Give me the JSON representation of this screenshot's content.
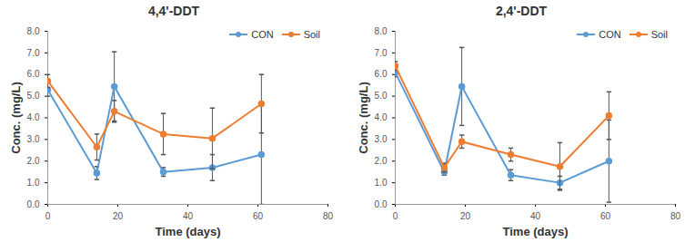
{
  "chart_data": [
    {
      "type": "line",
      "title": "4,4'-DDT",
      "x_label": "Time (days)",
      "y_label": "Conc. (mg/L)",
      "x": [
        0,
        14,
        19,
        33,
        47,
        61
      ],
      "series": [
        {
          "name": "CON",
          "color": "#5b9bd5",
          "marker": "circle",
          "values": [
            5.3,
            1.45,
            5.45,
            1.5,
            1.7,
            2.3
          ],
          "error": [
            0.3,
            0.3,
            1.6,
            0.2,
            0.6,
            2.3
          ]
        },
        {
          "name": "Soil",
          "color": "#ed7d31",
          "marker": "circle",
          "values": [
            5.7,
            2.65,
            4.3,
            3.25,
            3.05,
            4.65
          ],
          "error": [
            0.3,
            0.6,
            0.5,
            0.95,
            1.4,
            1.35
          ]
        }
      ],
      "xlim": [
        0,
        80
      ],
      "xticks": [
        0,
        20,
        40,
        60,
        80
      ],
      "ylim": [
        0,
        8
      ],
      "yticks": [
        {
          "value": 0,
          "label": "0.0"
        },
        {
          "value": 1,
          "label": "1.0"
        },
        {
          "value": 2,
          "label": "2.0"
        },
        {
          "value": 3,
          "label": "3.0"
        },
        {
          "value": 4,
          "label": "4.0"
        },
        {
          "value": 5,
          "label": "5.0"
        },
        {
          "value": 6,
          "label": "6.0"
        },
        {
          "value": 7,
          "label": "7.0"
        },
        {
          "value": 8,
          "label": "8.0"
        }
      ],
      "legend": "upper right",
      "grid": false
    },
    {
      "type": "line",
      "title": "2,4'-DDT",
      "x_label": "Time (days)",
      "y_label": "Conc. (mg/L)",
      "x": [
        0,
        14,
        19,
        33,
        47,
        61
      ],
      "series": [
        {
          "name": "CON",
          "color": "#5b9bd5",
          "marker": "circle",
          "values": [
            6.1,
            1.5,
            5.45,
            1.35,
            1.0,
            2.0
          ],
          "error": [
            0.2,
            0.15,
            1.8,
            0.25,
            0.3,
            1.9
          ]
        },
        {
          "name": "Soil",
          "color": "#ed7d31",
          "marker": "circle",
          "values": [
            6.4,
            1.7,
            2.9,
            2.3,
            1.75,
            4.1
          ],
          "error": [
            0.2,
            0.2,
            0.3,
            0.3,
            1.1,
            1.1
          ]
        }
      ],
      "xlim": [
        0,
        80
      ],
      "xticks": [
        0,
        20,
        40,
        60,
        80
      ],
      "ylim": [
        0,
        8
      ],
      "yticks": [
        {
          "value": 0,
          "label": "0.0"
        },
        {
          "value": 1,
          "label": "1.0"
        },
        {
          "value": 2,
          "label": "2.0"
        },
        {
          "value": 3,
          "label": "3.0"
        },
        {
          "value": 4,
          "label": "4.0"
        },
        {
          "value": 5,
          "label": "5.0"
        },
        {
          "value": 6,
          "label": "6.0"
        },
        {
          "value": 7,
          "label": "7.0"
        },
        {
          "value": 8,
          "label": "8.0"
        }
      ],
      "legend": "upper right",
      "grid": false
    }
  ]
}
